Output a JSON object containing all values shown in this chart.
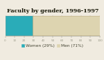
{
  "title": "Faculty by gender, 1996-1997",
  "women_pct": 29,
  "men_pct": 71,
  "women_label": "Women (29%)",
  "men_label": "Men (71%)",
  "women_color": "#2aacb8",
  "men_color": "#ddd4b0",
  "men_edge_color": "#b8a878",
  "women_edge_color": "#1a8a96",
  "bar_height": 0.6,
  "background_color": "#f0ebe0",
  "title_fontsize": 5.8,
  "legend_fontsize": 4.2,
  "tick_fontsize": 3.0,
  "xlim": [
    0,
    100
  ],
  "xticks": [
    0,
    10,
    20,
    30,
    40,
    50,
    60,
    70,
    80,
    90,
    100
  ]
}
